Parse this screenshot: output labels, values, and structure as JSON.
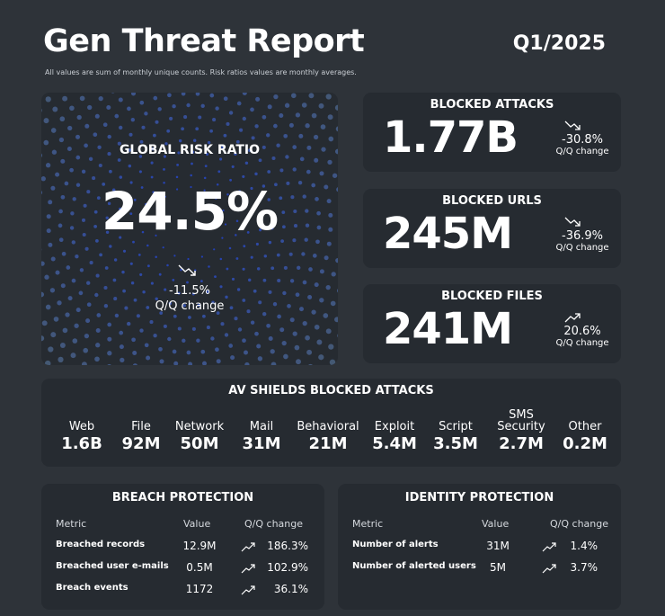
{
  "header": {
    "title": "Gen Threat Report",
    "period": "Q1/2025",
    "subtitle": "All values are sum of monthly unique counts. Risk ratios values are monthly averages."
  },
  "risk": {
    "label": "GLOBAL RISK RATIO",
    "value": "24.5%",
    "change": "-11.5%",
    "change_label": "Q/Q change",
    "trend_icon": "trend-down-icon"
  },
  "stats": [
    {
      "label": "BLOCKED ATTACKS",
      "value": "1.77B",
      "change": "-30.8%",
      "change_label": "Q/Q change",
      "trend_icon": "trend-down-icon"
    },
    {
      "label": "BLOCKED URLS",
      "value": "245M",
      "change": "-36.9%",
      "change_label": "Q/Q change",
      "trend_icon": "trend-down-icon"
    },
    {
      "label": "BLOCKED FILES",
      "value": "241M",
      "change": "20.6%",
      "change_label": "Q/Q change",
      "trend_icon": "trend-up-icon"
    }
  ],
  "shields": {
    "title": "AV SHIELDS BLOCKED ATTACKS",
    "items": [
      {
        "label": "Web",
        "value": "1.6B"
      },
      {
        "label": "File",
        "value": "92M"
      },
      {
        "label": "Network",
        "value": "50M"
      },
      {
        "label": "Mail",
        "value": "31M"
      },
      {
        "label": "Behavioral",
        "value": "21M"
      },
      {
        "label": "Exploit",
        "value": "5.4M"
      },
      {
        "label": "Script",
        "value": "3.5M"
      },
      {
        "label": "SMS Security",
        "value": "2.7M"
      },
      {
        "label": "Other",
        "value": "0.2M"
      }
    ]
  },
  "breach": {
    "title": "BREACH PROTECTION",
    "headers": {
      "metric": "Metric",
      "value": "Value",
      "change": "Q/Q change"
    },
    "rows": [
      {
        "metric": "Breached records",
        "value": "12.9M",
        "change": "186.3%"
      },
      {
        "metric": "Breached user e-mails",
        "value": "0.5M",
        "change": "102.9%"
      },
      {
        "metric": "Breach events",
        "value": "1172",
        "change": "36.1%"
      }
    ]
  },
  "identity": {
    "title": "IDENTITY PROTECTION",
    "headers": {
      "metric": "Metric",
      "value": "Value",
      "change": "Q/Q change"
    },
    "rows": [
      {
        "metric": "Number of alerts",
        "value": "31M",
        "change": "1.4%"
      },
      {
        "metric": "Number of alerted users",
        "value": "5M",
        "change": "3.7%"
      }
    ]
  },
  "colors": {
    "background": "#2e3339",
    "card": "#262b31",
    "dot_inner": "#2443c4",
    "dot_outer": "#5f7fa0"
  }
}
